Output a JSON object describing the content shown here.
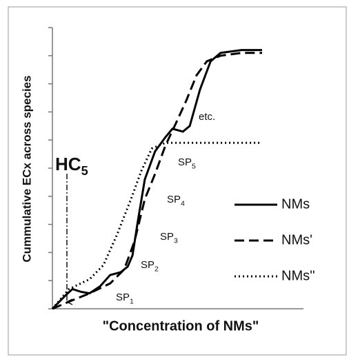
{
  "chart_data": {
    "type": "line",
    "xlabel": "\"Concentration of NMs\"",
    "ylabel": "Cummulative ECx across species",
    "xlim": [
      0,
      100
    ],
    "ylim": [
      0,
      10
    ],
    "yticks": [
      0,
      1,
      2,
      3,
      4,
      5,
      6,
      7,
      8,
      9,
      10
    ],
    "legend": "right",
    "series": [
      {
        "name": "NMs",
        "color": "#000000",
        "style": "solid",
        "x": [
          0,
          5.5,
          8,
          11.5,
          14.8,
          19,
          23,
          27.2,
          30,
          31.9,
          34,
          36.8,
          40.9,
          45,
          47.8,
          52,
          54.7,
          58.8,
          63,
          67,
          75.3,
          83.5
        ],
        "values": [
          0,
          0.5,
          0.7,
          0.6,
          0.55,
          0.8,
          1.2,
          1.3,
          1.5,
          1.9,
          3.1,
          4.6,
          5.6,
          6.1,
          6.4,
          6.3,
          6.5,
          7.8,
          8.8,
          9.1,
          9.2,
          9.2
        ]
      },
      {
        "name": "NMs'",
        "color": "#000000",
        "style": "dashed",
        "x": [
          0,
          6.6,
          14.8,
          23,
          28.6,
          32.7,
          36.8,
          40.9,
          45,
          49.2,
          53.3,
          57.4,
          61.5,
          67,
          75.3,
          83.5
        ],
        "values": [
          0,
          0.25,
          0.55,
          0.9,
          1.4,
          2.4,
          3.9,
          4.8,
          5.8,
          6.6,
          7.4,
          8.3,
          8.8,
          9.0,
          9.1,
          9.1
        ]
      },
      {
        "name": "NMs''",
        "color": "#000000",
        "style": "dotted",
        "x": [
          0,
          6.6,
          14.8,
          20.3,
          25.8,
          31.3,
          35.4,
          39.6,
          45,
          83.5
        ],
        "values": [
          0,
          0.7,
          1.05,
          1.55,
          2.65,
          3.9,
          4.9,
          5.7,
          5.9,
          5.9
        ]
      }
    ],
    "annotations": [
      {
        "text": "HC",
        "sub": "5"
      },
      {
        "text": "SP",
        "sub": "1"
      },
      {
        "text": "SP",
        "sub": "2"
      },
      {
        "text": "SP",
        "sub": "3"
      },
      {
        "text": "SP",
        "sub": "4"
      },
      {
        "text": "SP",
        "sub": "5"
      },
      {
        "text": "etc."
      }
    ]
  }
}
